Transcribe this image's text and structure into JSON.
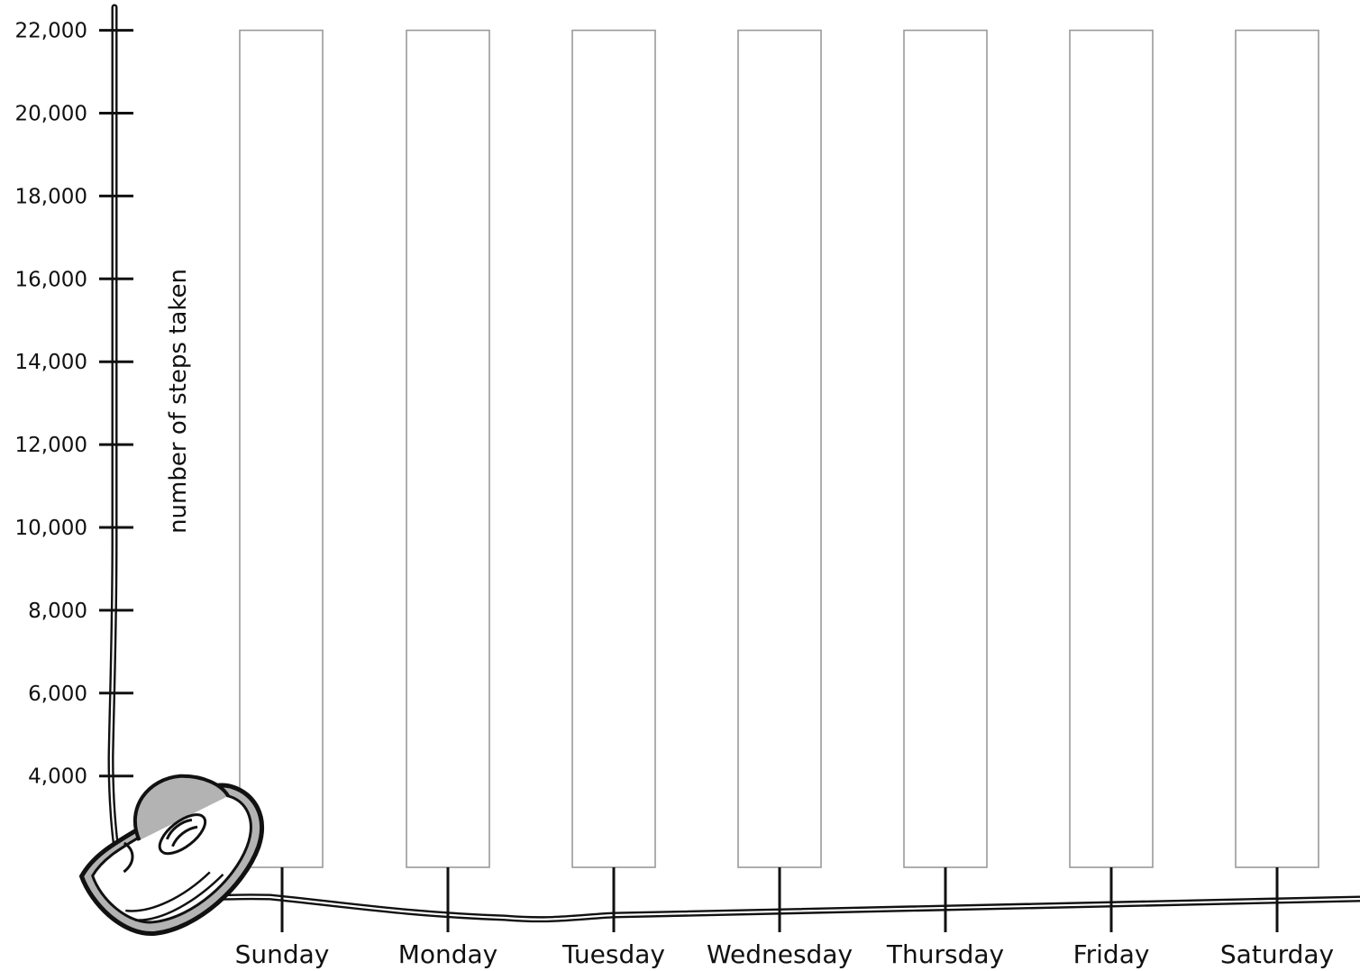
{
  "chart_data": {
    "type": "bar",
    "categories": [
      "Sunday",
      "Monday",
      "Tuesday",
      "Wednesday",
      "Thursday",
      "Friday",
      "Saturday"
    ],
    "values": [
      null,
      null,
      null,
      null,
      null,
      null,
      null
    ],
    "bar_style": "empty outlined columns to be filled in",
    "xlabel": "",
    "ylabel": "number of steps taken",
    "yticks": [
      4000,
      6000,
      8000,
      10000,
      12000,
      14000,
      16000,
      18000,
      20000,
      22000
    ],
    "ytick_labels": [
      "4,000",
      "6,000",
      "8,000",
      "10,000",
      "12,000",
      "14,000",
      "16,000",
      "18,000",
      "20,000",
      "22,000"
    ],
    "ylim": [
      0,
      22000
    ],
    "grid": false,
    "decoration": "sneaker-icon with shoelaces forming the axes",
    "colors": {
      "ink": "#111111",
      "bar_outline": "#9a9a9a",
      "shoe_fill": "#b3b3b3"
    }
  }
}
